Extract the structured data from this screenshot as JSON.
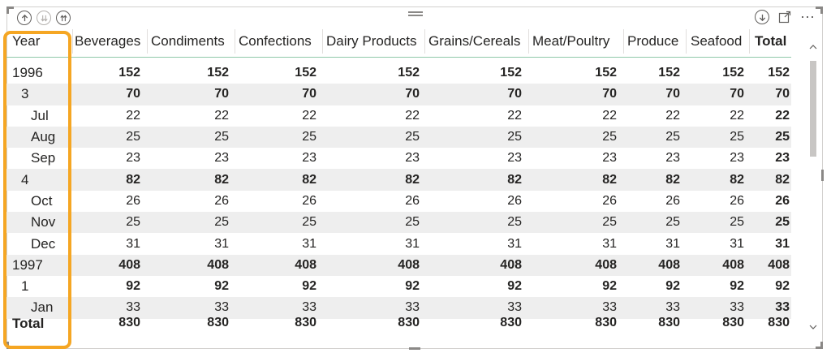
{
  "toolbar": {
    "left_icons": [
      "drill-up-icon",
      "drill-down-all-icon",
      "expand-all-icon"
    ],
    "right_icons": [
      "drill-down-toggle-icon",
      "focus-mode-icon",
      "more-options-icon"
    ],
    "more_label": "⋯"
  },
  "table": {
    "columns": [
      "Year",
      "Beverages",
      "Condiments",
      "Confections",
      "Dairy Products",
      "Grains/Cereals",
      "Meat/Poultry",
      "Produce",
      "Seafood",
      "Total"
    ],
    "rows": [
      {
        "label": "1996",
        "level": 0,
        "bold": true,
        "values": [
          "152",
          "152",
          "152",
          "152",
          "152",
          "152",
          "152",
          "152",
          "152"
        ]
      },
      {
        "label": "3",
        "level": 1,
        "bold": true,
        "values": [
          "70",
          "70",
          "70",
          "70",
          "70",
          "70",
          "70",
          "70",
          "70"
        ]
      },
      {
        "label": "Jul",
        "level": 2,
        "bold": false,
        "values": [
          "22",
          "22",
          "22",
          "22",
          "22",
          "22",
          "22",
          "22",
          "22"
        ]
      },
      {
        "label": "Aug",
        "level": 2,
        "bold": false,
        "values": [
          "25",
          "25",
          "25",
          "25",
          "25",
          "25",
          "25",
          "25",
          "25"
        ]
      },
      {
        "label": "Sep",
        "level": 2,
        "bold": false,
        "values": [
          "23",
          "23",
          "23",
          "23",
          "23",
          "23",
          "23",
          "23",
          "23"
        ]
      },
      {
        "label": "4",
        "level": 1,
        "bold": true,
        "values": [
          "82",
          "82",
          "82",
          "82",
          "82",
          "82",
          "82",
          "82",
          "82"
        ]
      },
      {
        "label": "Oct",
        "level": 2,
        "bold": false,
        "values": [
          "26",
          "26",
          "26",
          "26",
          "26",
          "26",
          "26",
          "26",
          "26"
        ]
      },
      {
        "label": "Nov",
        "level": 2,
        "bold": false,
        "values": [
          "25",
          "25",
          "25",
          "25",
          "25",
          "25",
          "25",
          "25",
          "25"
        ]
      },
      {
        "label": "Dec",
        "level": 2,
        "bold": false,
        "values": [
          "31",
          "31",
          "31",
          "31",
          "31",
          "31",
          "31",
          "31",
          "31"
        ]
      },
      {
        "label": "1997",
        "level": 0,
        "bold": true,
        "values": [
          "408",
          "408",
          "408",
          "408",
          "408",
          "408",
          "408",
          "408",
          "408"
        ]
      },
      {
        "label": "1",
        "level": 1,
        "bold": true,
        "values": [
          "92",
          "92",
          "92",
          "92",
          "92",
          "92",
          "92",
          "92",
          "92"
        ]
      },
      {
        "label": "Jan",
        "level": 2,
        "bold": false,
        "values": [
          "33",
          "33",
          "33",
          "33",
          "33",
          "33",
          "33",
          "33",
          "33"
        ]
      }
    ],
    "total": {
      "label": "Total",
      "values": [
        "830",
        "830",
        "830",
        "830",
        "830",
        "830",
        "830",
        "830",
        "830"
      ]
    }
  },
  "colors": {
    "highlight": "#f5a623",
    "header_rule": "#8fc9a9",
    "stripe": "#eeeeee"
  }
}
